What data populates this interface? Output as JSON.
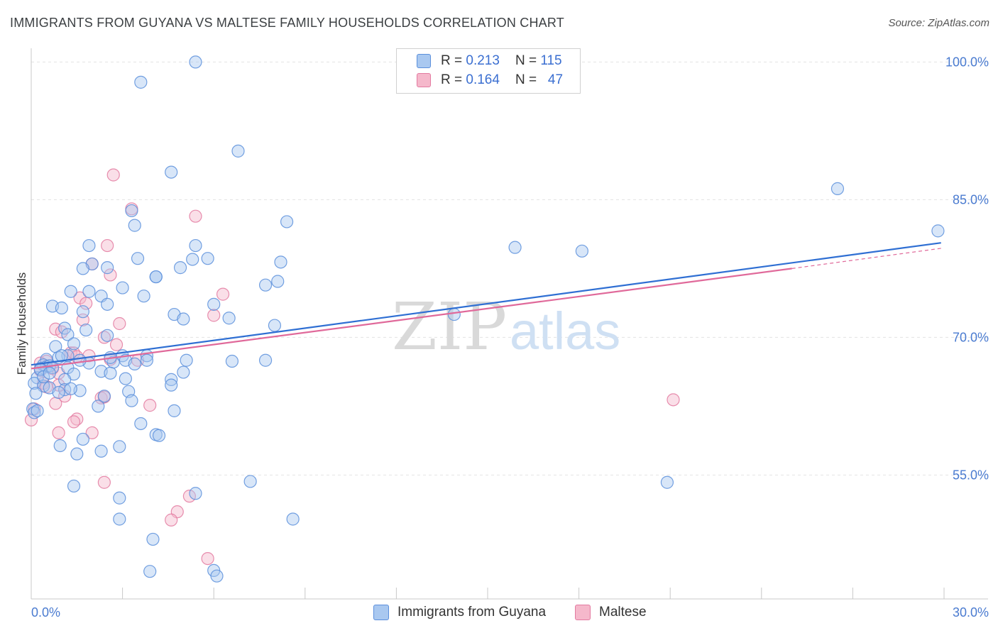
{
  "header": {
    "title": "IMMIGRANTS FROM GUYANA VS MALTESE FAMILY HOUSEHOLDS CORRELATION CHART",
    "source": "Source: ZipAtlas.com"
  },
  "watermark": {
    "zip": "ZIP",
    "atlas": "atlas"
  },
  "legend": {
    "rows": [
      {
        "r_label": "R =",
        "r_value": "0.213",
        "n_label": "N =",
        "n_value": "115"
      },
      {
        "r_label": "R =",
        "r_value": "0.164",
        "n_label": "N =",
        "n_value": "47"
      }
    ]
  },
  "colors": {
    "blue_fill": "#a9c8f0",
    "blue_stroke": "#5b8fdc",
    "blue_line": "#2f6fd3",
    "pink_fill": "#f5b8cb",
    "pink_stroke": "#e37aa0",
    "pink_line": "#e0699a",
    "grid": "#e3e3e3",
    "axis_text": "#4a7bd0"
  },
  "chart_data": {
    "type": "scatter",
    "title": "IMMIGRANTS FROM GUYANA VS MALTESE FAMILY HOUSEHOLDS CORRELATION CHART",
    "xlabel": "",
    "ylabel": "Family Households",
    "xlim": [
      0,
      30
    ],
    "ylim": [
      41.5,
      101.5
    ],
    "x_tick_labels": [
      "0.0%",
      "30.0%"
    ],
    "y_ticks": [
      55,
      70,
      85,
      100
    ],
    "y_tick_labels": [
      "55.0%",
      "70.0%",
      "85.0%",
      "100.0%"
    ],
    "legend_position": "top-center",
    "series": [
      {
        "name": "Immigrants from Guyana",
        "color": "blue",
        "R": 0.213,
        "N": 115,
        "trend": {
          "x0": 0,
          "y0": 67.0,
          "x1": 29.9,
          "y1": 80.3,
          "dash_to": null
        },
        "points": [
          [
            5.4,
            100.0
          ],
          [
            3.6,
            97.8
          ],
          [
            6.8,
            90.3
          ],
          [
            4.6,
            88.0
          ],
          [
            26.5,
            86.2
          ],
          [
            29.8,
            81.6
          ],
          [
            3.3,
            83.8
          ],
          [
            3.4,
            82.2
          ],
          [
            8.4,
            82.6
          ],
          [
            1.9,
            80.0
          ],
          [
            5.4,
            80.0
          ],
          [
            15.9,
            79.8
          ],
          [
            18.1,
            79.4
          ],
          [
            3.5,
            78.6
          ],
          [
            5.3,
            78.5
          ],
          [
            5.8,
            78.6
          ],
          [
            8.2,
            78.2
          ],
          [
            2.0,
            78.0
          ],
          [
            2.5,
            77.6
          ],
          [
            1.7,
            77.5
          ],
          [
            4.9,
            77.6
          ],
          [
            4.1,
            76.6
          ],
          [
            4.1,
            76.6
          ],
          [
            8.1,
            76.1
          ],
          [
            7.7,
            75.7
          ],
          [
            3.0,
            75.4
          ],
          [
            1.3,
            75.0
          ],
          [
            1.9,
            75.0
          ],
          [
            3.7,
            74.5
          ],
          [
            2.3,
            74.5
          ],
          [
            6.0,
            73.6
          ],
          [
            0.7,
            73.4
          ],
          [
            1.0,
            73.2
          ],
          [
            2.5,
            73.6
          ],
          [
            1.7,
            72.8
          ],
          [
            4.7,
            72.5
          ],
          [
            5.0,
            72.0
          ],
          [
            6.5,
            72.1
          ],
          [
            13.9,
            72.5
          ],
          [
            8.0,
            71.3
          ],
          [
            1.1,
            71.0
          ],
          [
            1.8,
            70.8
          ],
          [
            1.2,
            70.3
          ],
          [
            2.5,
            70.2
          ],
          [
            1.4,
            69.3
          ],
          [
            0.8,
            69.0
          ],
          [
            1.2,
            68.0
          ],
          [
            0.9,
            67.8
          ],
          [
            0.5,
            67.6
          ],
          [
            3.0,
            68.0
          ],
          [
            3.8,
            68.0
          ],
          [
            5.1,
            67.5
          ],
          [
            6.6,
            67.4
          ],
          [
            7.7,
            67.5
          ],
          [
            0.4,
            67.0
          ],
          [
            0.5,
            66.8
          ],
          [
            0.6,
            66.9
          ],
          [
            0.3,
            66.6
          ],
          [
            1.9,
            67.2
          ],
          [
            2.7,
            67.3
          ],
          [
            3.1,
            67.5
          ],
          [
            3.4,
            67.1
          ],
          [
            3.8,
            67.5
          ],
          [
            0.7,
            66.7
          ],
          [
            1.2,
            66.7
          ],
          [
            2.3,
            66.3
          ],
          [
            1.4,
            66.0
          ],
          [
            0.2,
            65.6
          ],
          [
            1.1,
            65.4
          ],
          [
            3.1,
            65.5
          ],
          [
            4.6,
            65.4
          ],
          [
            0.1,
            65.0
          ],
          [
            0.4,
            64.7
          ],
          [
            0.6,
            64.5
          ],
          [
            1.1,
            64.3
          ],
          [
            1.6,
            64.2
          ],
          [
            3.2,
            64.1
          ],
          [
            4.6,
            64.8
          ],
          [
            0.9,
            64.0
          ],
          [
            2.4,
            63.6
          ],
          [
            3.3,
            63.1
          ],
          [
            2.2,
            62.5
          ],
          [
            4.7,
            62.0
          ],
          [
            0.05,
            62.2
          ],
          [
            0.1,
            61.8
          ],
          [
            3.6,
            60.6
          ],
          [
            4.1,
            59.4
          ],
          [
            4.2,
            59.3
          ],
          [
            1.7,
            58.9
          ],
          [
            0.95,
            58.2
          ],
          [
            2.3,
            57.6
          ],
          [
            2.9,
            58.1
          ],
          [
            1.5,
            57.3
          ],
          [
            7.2,
            54.3
          ],
          [
            1.4,
            53.8
          ],
          [
            20.9,
            54.2
          ],
          [
            5.4,
            53.0
          ],
          [
            2.9,
            52.5
          ],
          [
            2.9,
            50.2
          ],
          [
            8.6,
            50.2
          ],
          [
            4.0,
            48.0
          ],
          [
            3.9,
            44.5
          ],
          [
            6.0,
            44.6
          ],
          [
            6.1,
            44.0
          ],
          [
            0.2,
            62.0
          ],
          [
            0.3,
            66.5
          ],
          [
            1.0,
            68.0
          ],
          [
            2.6,
            66.1
          ],
          [
            0.4,
            65.7
          ],
          [
            1.3,
            64.4
          ],
          [
            0.6,
            66.1
          ],
          [
            1.6,
            67.5
          ],
          [
            5.0,
            66.2
          ],
          [
            2.6,
            67.8
          ],
          [
            0.15,
            63.9
          ]
        ]
      },
      {
        "name": "Maltese",
        "color": "pink",
        "R": 0.164,
        "N": 47,
        "trend": {
          "x0": 0,
          "y0": 66.6,
          "x1": 25.0,
          "y1": 77.5,
          "dash_to": [
            29.9,
            79.7
          ]
        },
        "points": [
          [
            2.7,
            87.7
          ],
          [
            3.3,
            84.0
          ],
          [
            5.4,
            83.2
          ],
          [
            2.5,
            80.0
          ],
          [
            2.0,
            78.0
          ],
          [
            2.6,
            76.8
          ],
          [
            6.3,
            74.7
          ],
          [
            1.6,
            74.3
          ],
          [
            1.8,
            73.7
          ],
          [
            6.0,
            72.4
          ],
          [
            1.7,
            71.9
          ],
          [
            2.9,
            71.5
          ],
          [
            0.8,
            70.9
          ],
          [
            1.0,
            70.6
          ],
          [
            2.4,
            70.0
          ],
          [
            2.8,
            69.2
          ],
          [
            1.3,
            68.3
          ],
          [
            1.4,
            68.3
          ],
          [
            1.9,
            68.0
          ],
          [
            1.5,
            67.9
          ],
          [
            0.5,
            67.4
          ],
          [
            2.6,
            67.6
          ],
          [
            3.5,
            67.5
          ],
          [
            0.3,
            67.2
          ],
          [
            0.7,
            66.6
          ],
          [
            0.3,
            66.4
          ],
          [
            0.9,
            66.1
          ],
          [
            0.4,
            65.0
          ],
          [
            0.5,
            64.6
          ],
          [
            1.1,
            63.6
          ],
          [
            0.9,
            64.8
          ],
          [
            2.3,
            63.4
          ],
          [
            2.4,
            63.5
          ],
          [
            3.9,
            62.6
          ],
          [
            21.1,
            63.2
          ],
          [
            0.8,
            62.8
          ],
          [
            1.5,
            61.1
          ],
          [
            1.4,
            60.8
          ],
          [
            0.0,
            61.0
          ],
          [
            0.9,
            59.6
          ],
          [
            2.0,
            59.6
          ],
          [
            2.4,
            54.2
          ],
          [
            5.2,
            52.7
          ],
          [
            4.8,
            51.0
          ],
          [
            4.6,
            50.1
          ],
          [
            5.8,
            45.9
          ],
          [
            0.1,
            62.2
          ]
        ]
      }
    ]
  },
  "bottom_legend": {
    "items": [
      {
        "label": "Immigrants from Guyana"
      },
      {
        "label": "Maltese"
      }
    ]
  }
}
